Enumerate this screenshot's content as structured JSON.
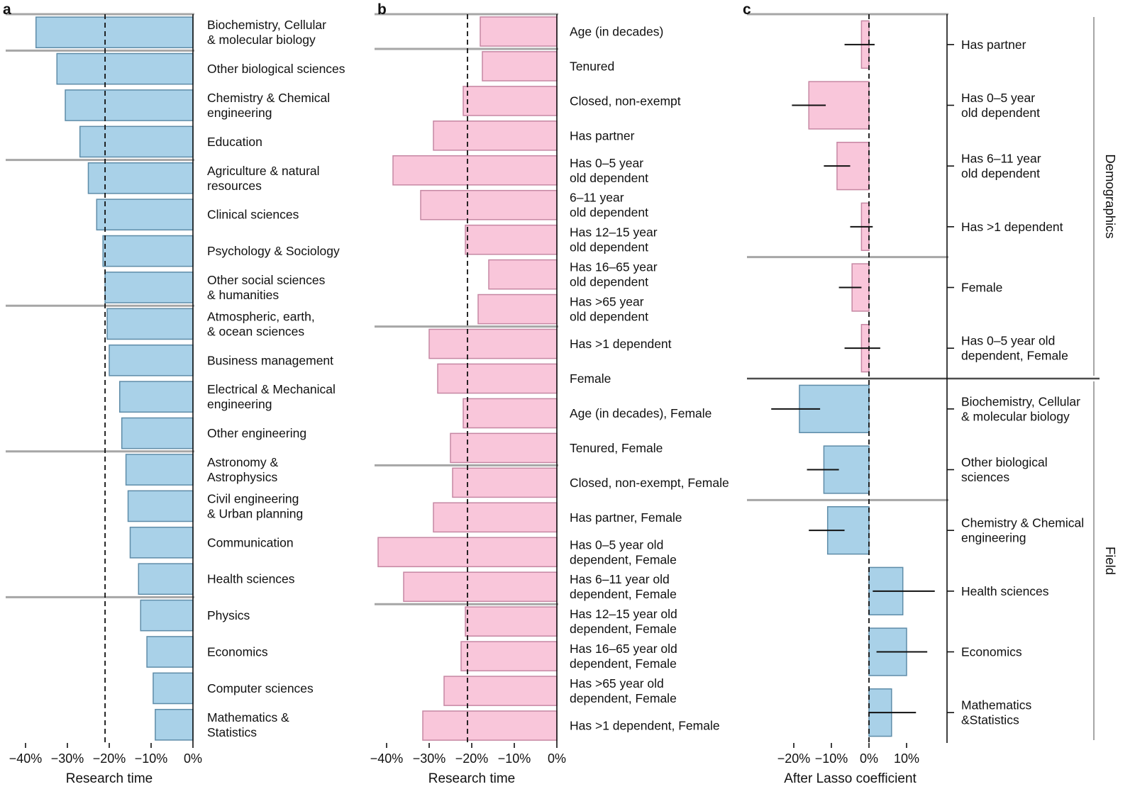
{
  "figure": {
    "background": "#ffffff",
    "colors": {
      "blue_fill": "#a9d1e8",
      "blue_stroke": "#5e8ca8",
      "pink_fill": "#f9c6da",
      "pink_stroke": "#c687a3",
      "separator": "#a6a6a6",
      "divider": "#4d4d4d",
      "axis": "#111111",
      "text": "#111111"
    }
  },
  "chart_data": [
    {
      "panel": "a",
      "type": "bar",
      "orientation": "horizontal",
      "color": "blue",
      "xlabel": "Research time",
      "xlim": [
        -45,
        0
      ],
      "xticks": [
        {
          "value": -40,
          "label": "−40%"
        },
        {
          "value": -30,
          "label": "−30%"
        },
        {
          "value": -20,
          "label": "−20%"
        },
        {
          "value": -10,
          "label": "−10%"
        },
        {
          "value": 0,
          "label": "0%"
        }
      ],
      "dashed_line": -21,
      "separators_after": [
        0,
        3,
        7,
        11,
        15
      ],
      "categories": [
        "Biochemistry, Cellular\n& molecular biology",
        "Other biological sciences",
        "Chemistry & Chemical\nengineering",
        "Education",
        "Agriculture & natural\nresources",
        "Clinical sciences",
        "Psychology & Sociology",
        "Other social sciences\n& humanities",
        "Atmospheric, earth,\n& ocean sciences",
        "Business management",
        "Electrical & Mechanical\nengineering",
        "Other engineering",
        "Astronomy &\nAstrophysics",
        "Civil engineering\n& Urban planning",
        "Communication",
        "Health sciences",
        "Physics",
        "Economics",
        "Computer sciences",
        "Mathematics &\nStatistics"
      ],
      "values": [
        -37.5,
        -32.5,
        -30.5,
        -27,
        -25,
        -23,
        -21.5,
        -21,
        -20.5,
        -20,
        -17.5,
        -17,
        -16,
        -15.5,
        -15,
        -13,
        -12.5,
        -11,
        -9.5,
        -9
      ]
    },
    {
      "panel": "b",
      "type": "bar",
      "orientation": "horizontal",
      "color": "pink",
      "xlabel": "Research time",
      "xlim": [
        -48,
        0
      ],
      "xticks": [
        {
          "value": -40,
          "label": "−40%"
        },
        {
          "value": -30,
          "label": "−30%"
        },
        {
          "value": -20,
          "label": "−20%"
        },
        {
          "value": -10,
          "label": "−10%"
        },
        {
          "value": 0,
          "label": "0%"
        }
      ],
      "dashed_line": -21,
      "separators_after": [
        0,
        8,
        12,
        16
      ],
      "categories": [
        "Age (in decades)",
        "Tenured",
        "Closed, non-exempt",
        "Has partner",
        "Has 0–5 year\nold dependent",
        "6–11 year\nold dependent",
        "Has 12–15 year\nold dependent",
        "Has 16–65 year\nold dependent",
        "Has >65 year\nold dependent",
        "Has >1 dependent",
        "Female",
        "Age (in decades), Female",
        "Tenured, Female",
        "Closed, non-exempt, Female",
        "Has partner, Female",
        "Has 0–5 year old\ndependent, Female",
        "Has 6–11 year old\ndependent, Female",
        "Has 12–15 year old\ndependent, Female",
        "Has 16–65 year old\ndependent, Female",
        "Has >65 year old\ndependent, Female",
        "Has >1 dependent, Female"
      ],
      "values": [
        -18,
        -17.5,
        -22,
        -29,
        -38.5,
        -32,
        -21.5,
        -16,
        -18.5,
        -30,
        -28,
        -22,
        -25,
        -24.5,
        -29,
        -42,
        -36,
        -21.5,
        -22.5,
        -26.5,
        -31.5
      ]
    },
    {
      "panel": "c",
      "type": "bar",
      "orientation": "horizontal",
      "xlabel": "After Lasso coefficient",
      "xlim": [
        -28,
        20
      ],
      "xticks": [
        {
          "value": -20,
          "label": "−20%"
        },
        {
          "value": -10,
          "label": "−10%"
        },
        {
          "value": 0,
          "label": "0%"
        },
        {
          "value": 10,
          "label": "10%"
        }
      ],
      "dashed_line": 0,
      "separators_after": [
        3,
        7
      ],
      "group_divider_after": 5,
      "groups": [
        {
          "label": "Demographics",
          "color": "pink",
          "from": 0,
          "to": 5
        },
        {
          "label": "Field",
          "color": "blue",
          "from": 6,
          "to": 11
        }
      ],
      "categories": [
        "Has partner",
        "Has 0–5 year\nold dependent",
        "Has 6–11 year\nold dependent",
        "Has >1 dependent",
        "Female",
        "Has 0–5 year old\ndependent, Female",
        "Biochemistry, Cellular\n& molecular biology",
        "Other biological\nsciences",
        "Chemistry & Chemical\nengineering",
        "Health sciences",
        "Economics",
        "Mathematics\n&Statistics"
      ],
      "values": [
        -2,
        -16,
        -8.5,
        -2,
        -4.5,
        -2,
        -18.5,
        -12,
        -11,
        9,
        10,
        6
      ],
      "ci": [
        [
          -6.5,
          1.5
        ],
        [
          -20.5,
          -11.5
        ],
        [
          -12,
          -5
        ],
        [
          -5,
          1
        ],
        [
          -8,
          -2
        ],
        [
          -6.5,
          3
        ],
        [
          -26,
          -13
        ],
        [
          -16.5,
          -8
        ],
        [
          -16,
          -6.5
        ],
        [
          1,
          17.5
        ],
        [
          2,
          15.5
        ],
        [
          0,
          12.5
        ]
      ]
    }
  ]
}
